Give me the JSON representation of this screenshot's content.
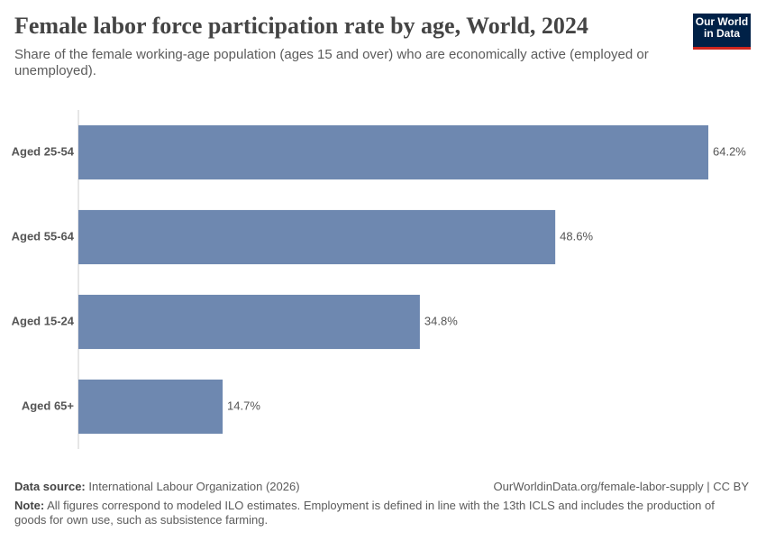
{
  "chart_data": {
    "type": "bar",
    "orientation": "horizontal",
    "title": "Female labor force participation rate by age, World, 2024",
    "subtitle": "Share of the female working-age population (ages 15 and over) who are economically active (employed or unemployed).",
    "categories": [
      "Aged 25-54",
      "Aged 55-64",
      "Aged 15-24",
      "Aged 65+"
    ],
    "values": [
      64.2,
      48.6,
      34.8,
      14.7
    ],
    "value_labels": [
      "64.2%",
      "48.6%",
      "34.8%",
      "14.7%"
    ],
    "color": "#6e88b0",
    "logo": [
      "Our World",
      "in Data"
    ],
    "source_label": "Data source:",
    "source": "International Labour Organization (2026)",
    "url": "OurWorldinData.org/female-labor-supply | CC BY",
    "note_label": "Note:",
    "note": "All figures correspond to modeled ILO estimates. Employment is defined in line with the 13th ICLS and includes the production of goods for own use, such as subsistence farming."
  }
}
